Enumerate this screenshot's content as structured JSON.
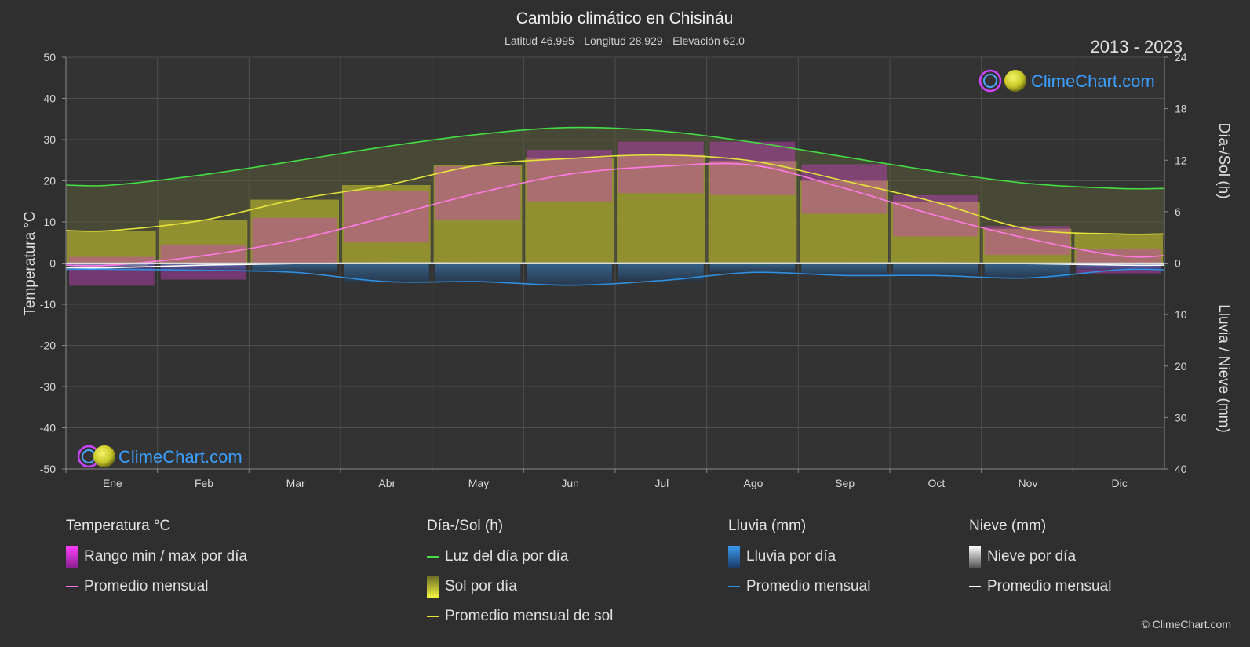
{
  "header": {
    "title": "Cambio climático en Chisináu",
    "subtitle": "Latitud 46.995 - Longitud 28.929 - Elevación 62.0",
    "years": "2013 - 2023"
  },
  "axes": {
    "left_label": "Temperatura °C",
    "right_top_label": "Día-/Sol (h)",
    "right_bottom_label": "Lluvia / Nieve (mm)",
    "left_ticks": [
      50,
      40,
      30,
      20,
      10,
      0,
      -10,
      -20,
      -30,
      -40,
      -50
    ],
    "right_top_ticks": [
      24,
      18,
      12,
      6,
      0
    ],
    "right_bottom_ticks": [
      10,
      20,
      30,
      40
    ],
    "months": [
      "Ene",
      "Feb",
      "Mar",
      "Abr",
      "May",
      "Jun",
      "Jul",
      "Ago",
      "Sep",
      "Oct",
      "Nov",
      "Dic"
    ]
  },
  "chart_data": {
    "type": "line",
    "x": [
      "Ene",
      "Feb",
      "Mar",
      "Abr",
      "May",
      "Jun",
      "Jul",
      "Ago",
      "Sep",
      "Oct",
      "Nov",
      "Dic"
    ],
    "ylim_temperature": [
      -50,
      50
    ],
    "ylim_daylight_sun_h": [
      0,
      24
    ],
    "ylim_rain_snow_mm": [
      0,
      40
    ],
    "grid": true,
    "series": [
      {
        "name": "Luz del día por día",
        "axis": "hours",
        "color": "#44dd44",
        "values": [
          9.1,
          10.3,
          11.9,
          13.6,
          15.0,
          15.8,
          15.4,
          14.1,
          12.4,
          10.7,
          9.3,
          8.7
        ]
      },
      {
        "name": "Promedio mensual de sol",
        "axis": "hours",
        "color": "#e4e43a",
        "values": [
          3.8,
          5.0,
          7.4,
          9.1,
          11.4,
          12.2,
          12.6,
          11.9,
          9.6,
          7.1,
          4.0,
          3.4
        ]
      },
      {
        "name": "Promedio mensual",
        "group": "Temperatura °C",
        "axis": "temperature",
        "color": "#ff7ae6",
        "values": [
          -0.5,
          1.8,
          5.6,
          11.2,
          17.0,
          21.6,
          23.5,
          23.8,
          18.2,
          11.6,
          6.0,
          1.8
        ]
      },
      {
        "name": "Promedio mensual",
        "group": "Lluvia (mm)",
        "axis": "precip",
        "color": "#2f8fe0",
        "values": [
          1.2,
          1.4,
          1.8,
          3.6,
          3.6,
          4.3,
          3.4,
          1.8,
          2.4,
          2.4,
          2.9,
          1.3
        ]
      },
      {
        "name": "Promedio mensual",
        "group": "Nieve (mm)",
        "axis": "precip",
        "color": "#ffffff",
        "values": [
          0.9,
          0.4,
          0.1,
          0.0,
          0.0,
          0.0,
          0.0,
          0.0,
          0.0,
          0.0,
          0.1,
          0.4
        ]
      }
    ],
    "ranges": {
      "temperature_daily_max": [
        1.5,
        4.5,
        11.0,
        17.5,
        23.5,
        27.5,
        29.5,
        29.5,
        24.0,
        16.5,
        9.0,
        3.5
      ],
      "temperature_daily_min": [
        -5.5,
        -4.0,
        0.0,
        5.0,
        10.5,
        15.0,
        17.0,
        16.5,
        12.0,
        6.5,
        2.0,
        -2.5
      ],
      "sunshine_hours": [
        3.8,
        5.0,
        7.4,
        9.1,
        11.4,
        12.2,
        12.6,
        11.9,
        9.6,
        7.1,
        4.0,
        3.4
      ]
    }
  },
  "legend": {
    "temperature": {
      "title": "Temperatura °C",
      "items": [
        {
          "label": "Rango min / max por día",
          "color": "#e040e0"
        },
        {
          "label": "Promedio mensual",
          "color": "#ff7ae6"
        }
      ]
    },
    "daylight": {
      "title": "Día-/Sol (h)",
      "items": [
        {
          "label": "Luz del día por día",
          "color": "#44dd44"
        },
        {
          "label": "Sol por día",
          "color": "#d6d62c"
        },
        {
          "label": "Promedio mensual de sol",
          "color": "#e4e43a"
        }
      ]
    },
    "rain": {
      "title": "Lluvia (mm)",
      "items": [
        {
          "label": "Lluvia por día",
          "color": "#2f8fe0"
        },
        {
          "label": "Promedio mensual",
          "color": "#2f8fe0"
        }
      ]
    },
    "snow": {
      "title": "Nieve (mm)",
      "items": [
        {
          "label": "Nieve por día",
          "color": "#ffffff"
        },
        {
          "label": "Promedio mensual",
          "color": "#ffffff"
        }
      ]
    }
  },
  "brand": {
    "logo_text": "ClimeChart.com",
    "copyright": "© ClimeChart.com"
  }
}
